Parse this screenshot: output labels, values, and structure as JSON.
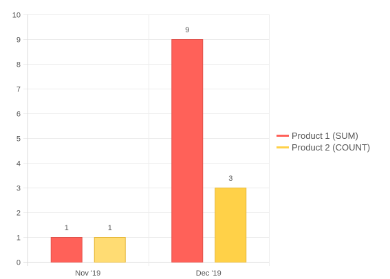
{
  "chart_data": {
    "type": "bar",
    "categories": [
      "Nov '19",
      "Dec '19"
    ],
    "series": [
      {
        "name": "Product 1 (SUM)",
        "values": [
          1,
          9
        ],
        "color": "#FF6159",
        "border_color": "#E0524B"
      },
      {
        "name": "Product 2 (COUNT)",
        "values": [
          1,
          3
        ],
        "color": "#FFD148",
        "border_color": "#E6B83A"
      }
    ],
    "yticks": [
      "0",
      "1",
      "2",
      "3",
      "4",
      "5",
      "6",
      "7",
      "8",
      "9",
      "10"
    ],
    "ylim": [
      0,
      10
    ],
    "grid": true,
    "legend_position": "right",
    "data_labels": true,
    "first_category_lighter_fill": {
      "Product 2 (COUNT)": "#FFDC73"
    }
  }
}
